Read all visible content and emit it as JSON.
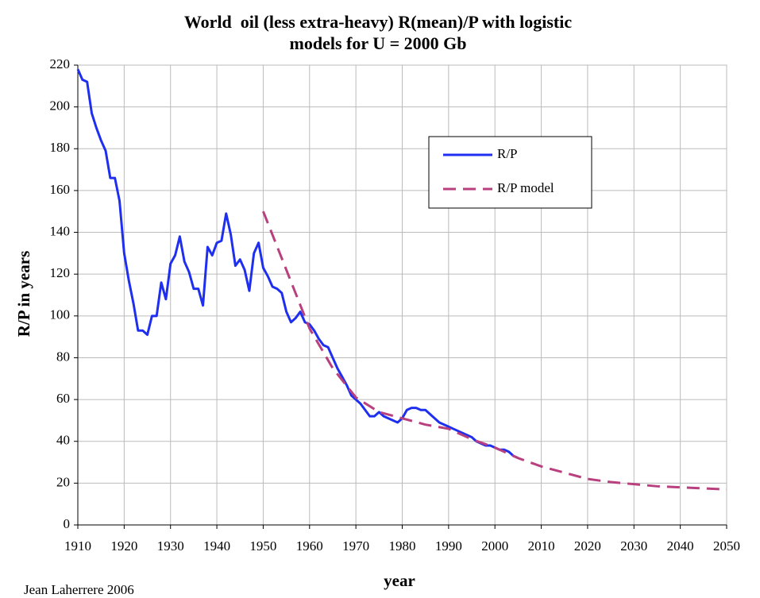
{
  "chart_data": {
    "type": "line",
    "title": [
      "World  oil (less extra-heavy) R(mean)/P with logistic",
      "models for U = 2000 Gb"
    ],
    "x_label": "year",
    "y_label": "R/P in years",
    "source": "Jean Laherrere 2006",
    "xlim": [
      1910,
      2050
    ],
    "xticks": [
      1910,
      1920,
      1930,
      1940,
      1950,
      1960,
      1970,
      1980,
      1990,
      2000,
      2010,
      2020,
      2030,
      2040,
      2050
    ],
    "ylim": [
      0,
      220
    ],
    "yticks": [
      0,
      20,
      40,
      60,
      80,
      100,
      120,
      140,
      160,
      180,
      200,
      220
    ],
    "grid": true,
    "legend": "upper right",
    "series": [
      {
        "name": "R/P",
        "color": "#1f2ff0",
        "line_style": "solid",
        "x": [
          1910,
          1911,
          1912,
          1913,
          1914,
          1915,
          1916,
          1917,
          1918,
          1919,
          1920,
          1921,
          1922,
          1923,
          1924,
          1925,
          1926,
          1927,
          1928,
          1929,
          1930,
          1931,
          1932,
          1933,
          1934,
          1935,
          1936,
          1937,
          1938,
          1939,
          1940,
          1941,
          1942,
          1943,
          1944,
          1945,
          1946,
          1947,
          1948,
          1949,
          1950,
          1951,
          1952,
          1953,
          1954,
          1955,
          1956,
          1957,
          1958,
          1959,
          1960,
          1961,
          1962,
          1963,
          1964,
          1965,
          1966,
          1967,
          1968,
          1969,
          1970,
          1971,
          1972,
          1973,
          1974,
          1975,
          1976,
          1977,
          1978,
          1979,
          1980,
          1981,
          1982,
          1983,
          1984,
          1985,
          1986,
          1987,
          1988,
          1989,
          1990,
          1991,
          1992,
          1993,
          1994,
          1995,
          1996,
          1997,
          1998,
          1999,
          2000,
          2001,
          2002,
          2003,
          2004,
          2005
        ],
        "values": [
          218,
          213,
          212,
          197,
          190,
          184,
          179,
          166,
          166,
          155,
          130,
          117,
          106,
          93,
          93,
          91,
          100,
          100,
          116,
          108,
          125,
          129,
          138,
          126,
          121,
          113,
          113,
          105,
          133,
          129,
          135,
          136,
          149,
          139,
          124,
          127,
          122,
          112,
          130,
          135,
          123,
          119,
          114,
          113,
          111,
          102,
          97,
          99,
          102,
          97,
          96,
          93,
          89,
          86,
          85,
          80,
          75,
          71,
          67,
          62,
          60,
          58,
          55,
          52,
          52,
          54,
          52,
          51,
          50,
          49,
          51,
          55,
          56,
          56,
          55,
          55,
          53,
          51,
          49,
          48,
          47,
          46,
          45,
          44,
          43,
          42,
          40,
          39,
          38,
          38,
          37,
          36,
          36,
          35,
          33,
          32
        ]
      },
      {
        "name": "R/P model",
        "color": "#b8407e",
        "line_style": "dashed",
        "x": [
          1950,
          1955,
          1960,
          1965,
          1970,
          1975,
          1980,
          1985,
          1990,
          1995,
          2000,
          2005,
          2010,
          2015,
          2020,
          2025,
          2030,
          2035,
          2040,
          2045,
          2050
        ],
        "values": [
          150,
          122,
          94,
          75,
          61,
          54,
          51,
          48,
          46,
          41,
          37,
          32,
          28,
          25,
          22,
          20.5,
          19.5,
          18.5,
          18,
          17.5,
          17
        ]
      }
    ]
  }
}
